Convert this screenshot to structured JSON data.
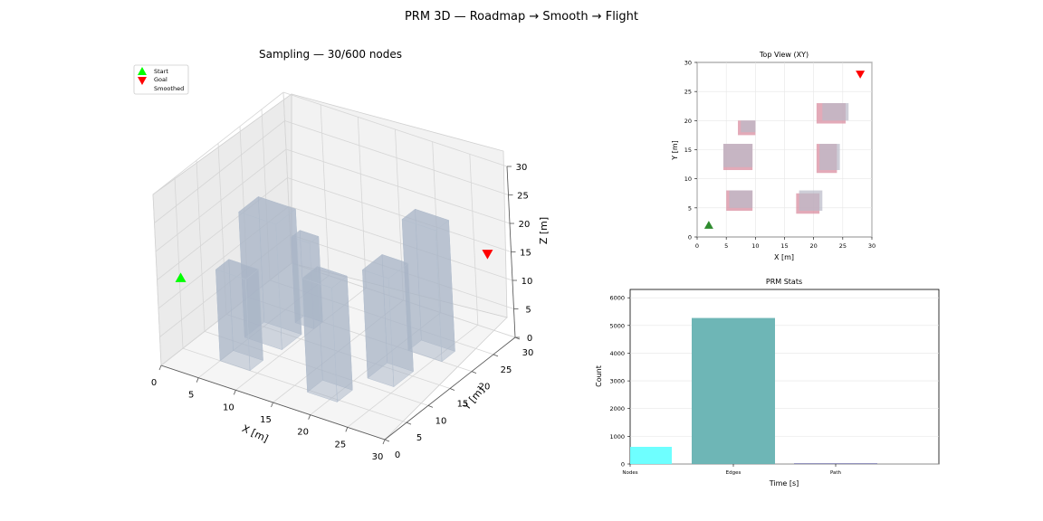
{
  "suptitle": "PRM 3D — Roadmap → Smooth → Flight",
  "colors": {
    "start": "#00ff00",
    "goal": "#ff0000",
    "obstacle3d": "#a7b4c6",
    "obstacle_top_a": "#d98ea0",
    "obstacle_top_b": "#b9b9c8",
    "start_top": "#2e8b2e",
    "nodes_bar": "#66ffff",
    "edges_bar": "#66b2b2",
    "path_bar": "#5a5a9a"
  },
  "chart_data": [
    {
      "type": "scatter3d",
      "title": "Sampling — 30/600 nodes",
      "xlabel": "X [m]",
      "ylabel": "Y [m]",
      "zlabel": "Z [m]",
      "xlim": [
        0,
        30
      ],
      "ylim": [
        0,
        30
      ],
      "zlim": [
        0,
        30
      ],
      "xticks": [
        "0",
        "5",
        "10",
        "15",
        "20",
        "25",
        "30"
      ],
      "yticks": [
        "0",
        "5",
        "10",
        "15",
        "20",
        "25",
        "30"
      ],
      "zticks": [
        "0",
        "5",
        "10",
        "15",
        "20",
        "25",
        "30"
      ],
      "legend": [
        {
          "label": "Start",
          "marker": "triangle-up",
          "color": "#00ff00"
        },
        {
          "label": "Goal",
          "marker": "triangle-down",
          "color": "#ff0000"
        },
        {
          "label": "Smoothed",
          "marker": "line",
          "color": "#1f77b4"
        }
      ],
      "start": [
        2,
        2,
        15
      ],
      "goal": [
        28,
        28,
        15
      ],
      "obstacles": [
        {
          "x": [
            5,
            9
          ],
          "y": [
            5,
            8
          ],
          "z": [
            0,
            16
          ]
        },
        {
          "x": [
            17,
            21
          ],
          "y": [
            4.5,
            8
          ],
          "z": [
            0,
            20
          ]
        },
        {
          "x": [
            4.5,
            9.5
          ],
          "y": [
            11.5,
            16
          ],
          "z": [
            0,
            22
          ]
        },
        {
          "x": [
            21,
            24.5
          ],
          "y": [
            11.5,
            16
          ],
          "z": [
            0,
            19
          ]
        },
        {
          "x": [
            7.5,
            10
          ],
          "y": [
            18,
            20
          ],
          "z": [
            0,
            15
          ]
        },
        {
          "x": [
            21.5,
            26
          ],
          "y": [
            20,
            23
          ],
          "z": [
            0,
            23
          ]
        }
      ]
    },
    {
      "type": "scatter",
      "title": "Top View (XY)",
      "xlabel": "X [m]",
      "ylabel": "Y [m]",
      "xlim": [
        0,
        30
      ],
      "ylim": [
        0,
        30
      ],
      "xticks": [
        "0",
        "5",
        "10",
        "15",
        "20",
        "25",
        "30"
      ],
      "yticks": [
        "0",
        "5",
        "10",
        "15",
        "20",
        "25",
        "30"
      ],
      "start": [
        2,
        2
      ],
      "goal": [
        28,
        28
      ],
      "rects_a": [
        {
          "x": [
            5,
            9.5
          ],
          "y": [
            4.5,
            8
          ]
        },
        {
          "x": [
            17,
            21
          ],
          "y": [
            4,
            7.5
          ]
        },
        {
          "x": [
            4.5,
            9.5
          ],
          "y": [
            11.5,
            16
          ]
        },
        {
          "x": [
            20.5,
            24
          ],
          "y": [
            11,
            16
          ]
        },
        {
          "x": [
            7,
            10
          ],
          "y": [
            17.5,
            20
          ]
        },
        {
          "x": [
            20.5,
            25.5
          ],
          "y": [
            19.5,
            23
          ]
        }
      ],
      "rects_b": [
        {
          "x": [
            5.5,
            9.5
          ],
          "y": [
            5,
            8
          ]
        },
        {
          "x": [
            17.5,
            21.5
          ],
          "y": [
            4.5,
            8
          ]
        },
        {
          "x": [
            4.5,
            9.5
          ],
          "y": [
            12,
            16
          ]
        },
        {
          "x": [
            21,
            24.5
          ],
          "y": [
            11.5,
            16
          ]
        },
        {
          "x": [
            7.5,
            10
          ],
          "y": [
            18,
            20
          ]
        },
        {
          "x": [
            21.5,
            26
          ],
          "y": [
            20,
            23
          ]
        }
      ]
    },
    {
      "type": "bar",
      "title": "PRM Stats",
      "xlabel": "Time [s]",
      "ylabel": "Count",
      "ylim": [
        0,
        6300
      ],
      "yticks": [
        "0",
        "1000",
        "2000",
        "3000",
        "4000",
        "5000",
        "6000"
      ],
      "categories": [
        "Nodes",
        "Edges",
        "Path"
      ],
      "values": [
        620,
        5270,
        22
      ]
    }
  ]
}
